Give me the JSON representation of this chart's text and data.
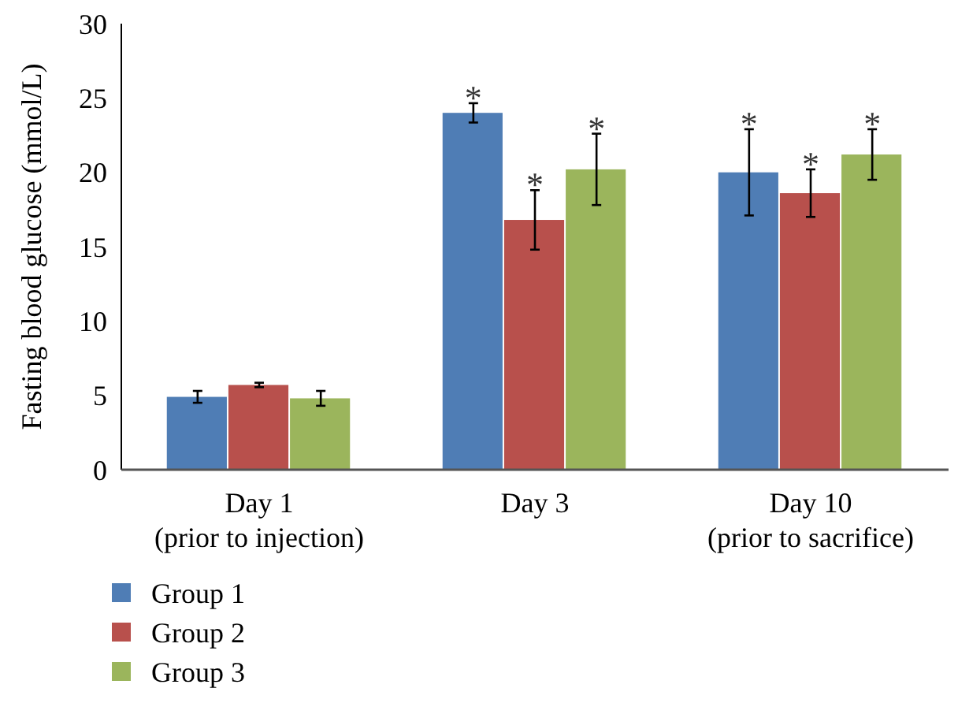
{
  "chart_data": {
    "type": "bar",
    "ylabel": "Fasting blood glucose (mmol/L)",
    "categories": [
      "Day 1\n(prior to injection)",
      "Day 3",
      "Day 10\n(prior to sacrifice)"
    ],
    "ylim": [
      0,
      30
    ],
    "yticks": [
      0,
      5,
      10,
      15,
      20,
      25,
      30
    ],
    "grid": false,
    "legend": "bottom left",
    "series": [
      {
        "name": "Group 1",
        "color": "#4f7db5",
        "values": [
          4.9,
          24.0,
          20.0
        ],
        "errors": [
          0.4,
          0.65,
          2.9
        ],
        "value_labels": [
          null,
          "*",
          "*"
        ]
      },
      {
        "name": "Group 2",
        "color": "#b8504c",
        "values": [
          5.7,
          16.8,
          18.6
        ],
        "errors": [
          0.15,
          2.0,
          1.6
        ],
        "value_labels": [
          null,
          "*",
          "*"
        ]
      },
      {
        "name": "Group 3",
        "color": "#9bb55c",
        "values": [
          4.8,
          20.2,
          21.2
        ],
        "errors": [
          0.5,
          2.4,
          1.7
        ],
        "value_labels": [
          null,
          "*",
          "*"
        ]
      }
    ]
  }
}
